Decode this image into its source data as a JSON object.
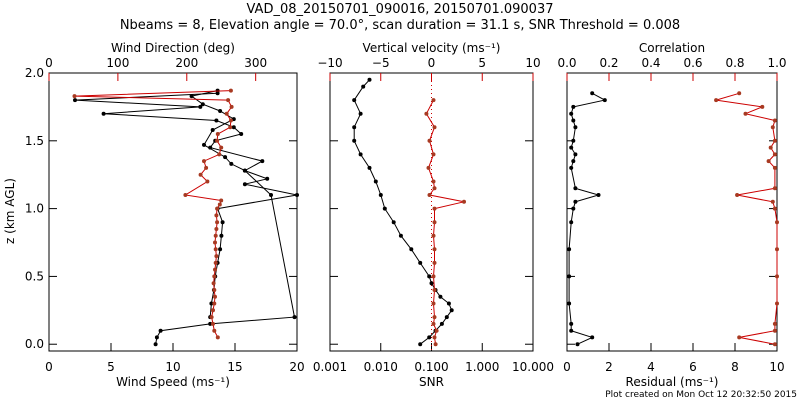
{
  "colors": {
    "black": "#000000",
    "red": "#cc0000",
    "red_points": "#a83a22",
    "background": "#ffffff"
  },
  "chart_data": {
    "title_line1": "VAD_08_20150701_090016, 20150701.090037",
    "title_line2": "Nbeams = 8, Elevation angle = 70.0°, scan duration = 31.1 s, SNR Threshold = 0.008",
    "footer": "Plot created on Mon Oct 12 20:32:50 2015",
    "ylabel": "z (km AGL)",
    "ylim": [
      -0.05,
      2.0
    ],
    "ytick_labels": [
      "0.0",
      "0.5",
      "1.0",
      "1.5",
      "2.0"
    ],
    "ytick_values": [
      0.0,
      0.5,
      1.0,
      1.5,
      2.0
    ],
    "panels": [
      {
        "name": "wind",
        "type": "line",
        "bottom_axis": {
          "label": "Wind Speed (ms⁻¹)",
          "range": [
            0,
            20
          ],
          "ticks": [
            0,
            5,
            10,
            15,
            20
          ],
          "tick_labels": [
            "0",
            "5",
            "10",
            "15",
            "20"
          ],
          "scale": "linear"
        },
        "top_axis": {
          "label": "Wind Direction (deg)",
          "range": [
            0,
            360
          ],
          "ticks": [
            0,
            100,
            200,
            300
          ],
          "tick_labels": [
            "0",
            "100",
            "200",
            "300"
          ],
          "scale": "linear"
        },
        "series": [
          {
            "name": "Wind Speed",
            "axis": "bottom",
            "color": "black",
            "z": [
              0.0,
              0.05,
              0.1,
              0.15,
              0.2,
              1.1,
              1.28,
              1.33,
              1.38,
              1.47,
              1.58,
              1.66,
              1.72,
              1.77,
              1.83,
              1.87
            ],
            "values": [
              8.6,
              8.7,
              9.0,
              13.0,
              19.8,
              17.9,
              15.8,
              14.7,
              14.2,
              12.5,
              13.2,
              14.9,
              13.8,
              12.4,
              11.5,
              13.6
            ]
          },
          {
            "name": "Wind Speed profile",
            "axis": "bottom",
            "color": "black",
            "z": [
              0.2,
              0.3,
              0.4,
              0.5,
              0.6,
              0.7,
              0.8,
              0.9,
              1.0,
              1.1,
              1.18,
              1.22,
              1.28,
              1.35,
              1.45,
              1.5,
              1.55,
              1.6,
              1.65,
              1.7,
              1.75,
              1.8,
              1.85
            ],
            "values": [
              13.0,
              13.1,
              13.3,
              13.4,
              13.6,
              13.8,
              13.9,
              14.0,
              13.6,
              20.0,
              15.8,
              17.6,
              15.8,
              17.2,
              13.0,
              13.4,
              15.5,
              14.9,
              13.5,
              4.4,
              12.2,
              2.1,
              13.6
            ]
          },
          {
            "name": "Wind Direction",
            "axis": "top",
            "color": "red",
            "z": [
              0.05,
              0.1,
              0.15,
              0.2,
              0.25,
              0.3,
              0.35,
              0.4,
              0.45,
              0.5,
              0.55,
              0.6,
              0.65,
              0.7,
              0.75,
              0.8,
              0.85,
              0.9,
              0.95,
              1.0,
              1.03,
              1.06,
              1.1,
              1.2,
              1.25,
              1.3,
              1.35,
              1.4,
              1.45,
              1.5,
              1.55,
              1.6,
              1.65,
              1.7,
              1.75,
              1.8,
              1.83,
              1.87
            ],
            "values": [
              245,
              240,
              238,
              236,
              238,
              240,
              241,
              240,
              239,
              240,
              241,
              242,
              243,
              242,
              241,
              242,
              243,
              244,
              243,
              244,
              248,
              250,
              198,
              230,
              220,
              228,
              225,
              247,
              250,
              244,
              245,
              263,
              264,
              258,
              265,
              260,
              37,
              264
            ]
          }
        ]
      },
      {
        "name": "vertical",
        "type": "line",
        "bottom_axis": {
          "label": "SNR",
          "range_log10": [
            -3,
            1
          ],
          "ticks": [
            0.001,
            0.01,
            0.1,
            1.0,
            10.0
          ],
          "tick_labels": [
            "0.001",
            "0.010",
            "0.100",
            "1.000",
            "10.000"
          ],
          "scale": "log"
        },
        "top_axis": {
          "label": "Vertical velocity (ms⁻¹)",
          "range": [
            -10,
            10
          ],
          "ticks": [
            -10,
            -5,
            0,
            5,
            10
          ],
          "tick_labels": [
            "−10",
            "−5",
            "0",
            "5",
            "10"
          ],
          "scale": "linear",
          "zero_line": true
        },
        "series": [
          {
            "name": "SNR",
            "axis": "bottom",
            "color": "black",
            "z": [
              0.0,
              0.05,
              0.1,
              0.15,
              0.2,
              0.25,
              0.3,
              0.35,
              0.4,
              0.45,
              0.5,
              0.6,
              0.7,
              0.8,
              0.9,
              1.0,
              1.1,
              1.2,
              1.3,
              1.4,
              1.5,
              1.6,
              1.7,
              1.8,
              1.9,
              1.95
            ],
            "values": [
              0.06,
              0.09,
              0.12,
              0.16,
              0.2,
              0.25,
              0.22,
              0.15,
              0.12,
              0.1,
              0.09,
              0.06,
              0.04,
              0.025,
              0.018,
              0.012,
              0.01,
              0.008,
              0.006,
              0.004,
              0.003,
              0.003,
              0.004,
              0.003,
              0.0045,
              0.006
            ]
          },
          {
            "name": "Vertical velocity",
            "axis": "top",
            "color": "red",
            "z": [
              0.0,
              0.05,
              0.1,
              0.15,
              0.2,
              0.3,
              0.4,
              0.5,
              0.6,
              0.7,
              0.8,
              0.9,
              1.0,
              1.05,
              1.1,
              1.15,
              1.2,
              1.3,
              1.4,
              1.5,
              1.6,
              1.7,
              1.8
            ],
            "values": [
              0.4,
              0.3,
              0.5,
              0.2,
              0.3,
              0.2,
              0.3,
              0.2,
              0.3,
              0.3,
              0.2,
              0.3,
              0.3,
              3.2,
              -0.2,
              0.3,
              0.2,
              -0.3,
              0.2,
              -0.2,
              0.3,
              -0.5,
              0.2
            ]
          }
        ]
      },
      {
        "name": "residual",
        "type": "line",
        "bottom_axis": {
          "label": "Residual (ms⁻¹)",
          "range": [
            0,
            10
          ],
          "ticks": [
            0,
            2,
            4,
            6,
            8,
            10
          ],
          "tick_labels": [
            "0",
            "2",
            "4",
            "6",
            "8",
            "10"
          ],
          "scale": "linear"
        },
        "top_axis": {
          "label": "Correlation",
          "range": [
            0.0,
            1.0
          ],
          "ticks": [
            0.0,
            0.2,
            0.4,
            0.6,
            0.8,
            1.0
          ],
          "tick_labels": [
            "0.0",
            "0.2",
            "0.4",
            "0.6",
            "0.8",
            "1.0"
          ],
          "scale": "linear"
        },
        "series": [
          {
            "name": "Residual",
            "axis": "bottom",
            "color": "black",
            "z": [
              0.0,
              0.05,
              0.1,
              0.15,
              0.3,
              0.5,
              0.7,
              0.9,
              1.0,
              1.05,
              1.1,
              1.15,
              1.3,
              1.35,
              1.4,
              1.45,
              1.5,
              1.6,
              1.65,
              1.7,
              1.75,
              1.8,
              1.85
            ],
            "values": [
              0.5,
              1.2,
              0.2,
              0.2,
              0.1,
              0.1,
              0.1,
              0.2,
              0.3,
              0.4,
              1.5,
              0.4,
              0.2,
              0.3,
              0.4,
              0.2,
              0.3,
              0.4,
              0.3,
              0.2,
              0.3,
              1.8,
              1.2
            ]
          },
          {
            "name": "Correlation",
            "axis": "top",
            "color": "red",
            "z": [
              0.0,
              0.05,
              0.1,
              0.15,
              0.3,
              0.5,
              0.7,
              0.9,
              1.0,
              1.05,
              1.1,
              1.15,
              1.3,
              1.35,
              1.4,
              1.45,
              1.5,
              1.6,
              1.65,
              1.7,
              1.75,
              1.8,
              1.85
            ],
            "values": [
              0.99,
              0.82,
              0.99,
              0.99,
              1.0,
              1.0,
              1.0,
              1.0,
              0.99,
              0.98,
              0.81,
              0.99,
              0.99,
              0.96,
              0.99,
              0.97,
              0.99,
              0.98,
              0.99,
              0.85,
              0.93,
              0.71,
              0.82
            ]
          }
        ]
      }
    ]
  }
}
